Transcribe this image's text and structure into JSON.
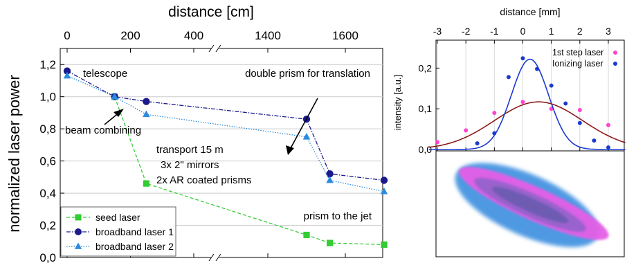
{
  "chart_data": [
    {
      "type": "line",
      "title": "",
      "xlabel": "distance [cm]",
      "ylabel": "normalized laser power",
      "x_axis_break": {
        "between": [
          400,
          1400
        ]
      },
      "x_tick_labels": [
        "0",
        "200",
        "400",
        "1400",
        "1600"
      ],
      "y_tick_labels": [
        "0,0",
        "0,2",
        "0,4",
        "0,6",
        "0,8",
        "1,0",
        "1,2"
      ],
      "ylim": [
        0,
        1.3
      ],
      "grid": "horizontal",
      "legend_position": "bottom-left",
      "series": [
        {
          "name": "seed laser",
          "color": "#33cc33",
          "marker": "square",
          "line": "dashed",
          "x": [
            150,
            250,
            1500,
            1560,
            1700
          ],
          "y": [
            1.0,
            0.46,
            0.14,
            0.09,
            0.08
          ]
        },
        {
          "name": "broadband laser 1",
          "color": "#1a1a8c",
          "marker": "circle",
          "line": "dash-dot",
          "x": [
            0,
            150,
            250,
            1500,
            1560,
            1700
          ],
          "y": [
            1.16,
            1.0,
            0.97,
            0.86,
            0.52,
            0.48
          ]
        },
        {
          "name": "broadband laser 2",
          "color": "#2b8be0",
          "marker": "triangle",
          "line": "dotted",
          "x": [
            0,
            150,
            250,
            1500,
            1560,
            1700
          ],
          "y": [
            1.13,
            1.0,
            0.89,
            0.75,
            0.48,
            0.41
          ]
        }
      ],
      "annotations": [
        {
          "text": "telescope"
        },
        {
          "text": "double prism for translation"
        },
        {
          "text": "beam combining"
        },
        {
          "text": "transport 15 m"
        },
        {
          "text": "3x 2\" mirrors"
        },
        {
          "text": "2x AR coated prisms"
        },
        {
          "text": "prism to the jet"
        }
      ]
    },
    {
      "type": "scatter",
      "title": "",
      "xlabel": "distance [mm]",
      "ylabel": "intensity [a.u.]",
      "xlim": [
        -3.3,
        3.6
      ],
      "ylim": [
        0,
        0.25
      ],
      "x_tick_labels": [
        "-3",
        "-2",
        "-1",
        "0",
        "1",
        "2",
        "3"
      ],
      "y_tick_labels": [
        "0,0",
        "0,1",
        "0,2"
      ],
      "legend_position": "top-right",
      "series": [
        {
          "name": "1st step laser",
          "color": "#ff44cc",
          "fit_color": "#8b1a1a",
          "x": [
            -3,
            -2,
            -1,
            0,
            1,
            2,
            3
          ],
          "y": [
            0.018,
            0.047,
            0.09,
            0.117,
            0.1,
            0.097,
            0.06
          ],
          "fit": {
            "amplitude": 0.117,
            "center": 0.55,
            "sigma": 1.55
          }
        },
        {
          "name": "Ionizing laser",
          "color": "#1a3ad0",
          "fit_color": "#1a3ad0",
          "x": [
            -1.6,
            -1,
            -0.5,
            0,
            0.5,
            1,
            1.5,
            2,
            2.5,
            3
          ],
          "y": [
            0.015,
            0.04,
            0.178,
            0.224,
            0.198,
            0.157,
            0.113,
            0.065,
            0.022,
            0.005
          ],
          "fit": {
            "amplitude": 0.222,
            "center": 0.25,
            "sigma": 0.65
          }
        }
      ]
    }
  ]
}
